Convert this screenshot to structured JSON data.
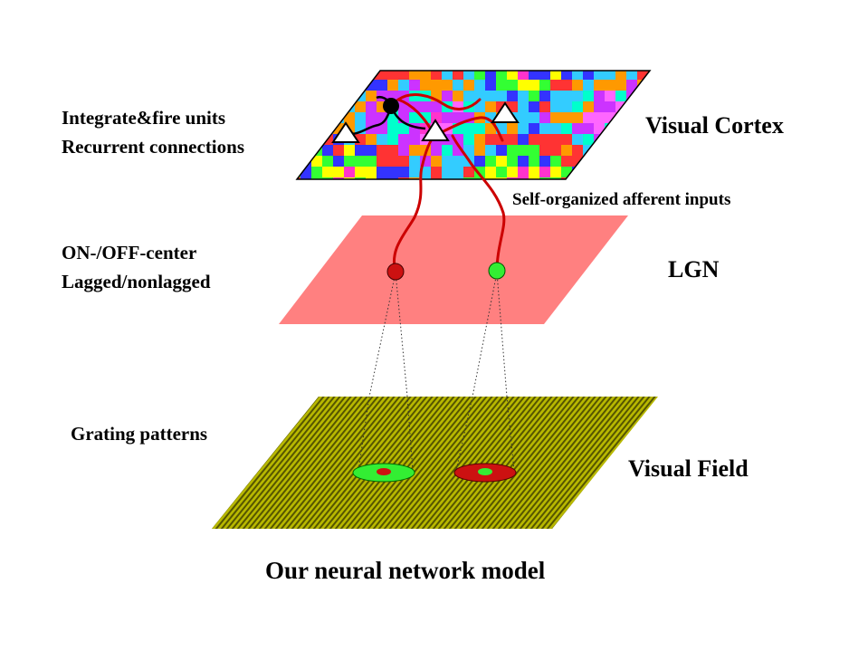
{
  "layers": {
    "cortex": {
      "name": "Visual Cortex",
      "description_lines": [
        "Integrate&fire units",
        "Recurrent connections"
      ]
    },
    "lgn": {
      "name": "LGN",
      "description_lines": [
        "ON-/OFF-center",
        "Lagged/nonlagged"
      ]
    },
    "field": {
      "name": "Visual Field",
      "description_lines": [
        "Grating patterns"
      ]
    }
  },
  "afferent_label": "Self-organized afferent inputs",
  "caption": "Our neural network model",
  "colors": {
    "cortex_map_palette": [
      "#ff33cc",
      "#ffff00",
      "#33ff33",
      "#3333ff",
      "#ff3333",
      "#33ccff",
      "#ff9900",
      "#cc33ff",
      "#00ffcc",
      "#ff66ff"
    ],
    "lgn_plane": "#ff8080",
    "field_plane": "#b8b800",
    "field_stripes": "#555500",
    "on_center": "#22dd22",
    "off_center": "#cc1111",
    "axon": "#cc0000",
    "recurrent": "#000000"
  }
}
